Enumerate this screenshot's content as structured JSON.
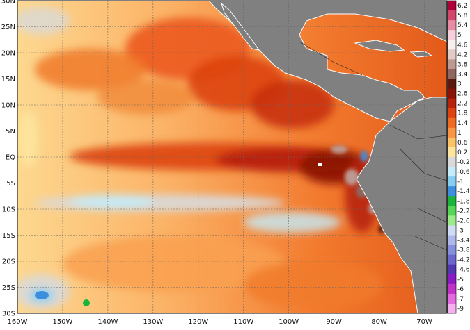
{
  "map": {
    "lat_labels": [
      "30N",
      "25N",
      "20N",
      "15N",
      "10N",
      "5N",
      "EQ",
      "5S",
      "10S",
      "15S",
      "20S",
      "25S",
      "30S"
    ],
    "lon_labels": [
      "160W",
      "150W",
      "140W",
      "130W",
      "120W",
      "110W",
      "100W",
      "90W",
      "80W",
      "70W"
    ],
    "extent": {
      "lon": [
        -160,
        -65
      ],
      "lat": [
        -30,
        30
      ]
    },
    "grid": true,
    "colorbar": {
      "placement": "right",
      "labels": [
        "6.2",
        "5.8",
        "5.4",
        "5",
        "4.6",
        "4.2",
        "3.8",
        "3.4",
        "3",
        "2.6",
        "2.2",
        "1.8",
        "1.4",
        "1",
        "0.6",
        "0.2",
        "-0.2",
        "-0.6",
        "-1",
        "-1.4",
        "-1.8",
        "-2.2",
        "-2.6",
        "-3",
        "-3.4",
        "-3.8",
        "-4.2",
        "-4.6",
        "-5",
        "-6",
        "-7",
        "-9"
      ],
      "colors": [
        "#b0003a",
        "#d2486a",
        "#e88ca4",
        "#f6cfdb",
        "#f7efee",
        "#e1cbc5",
        "#bc9a92",
        "#8f6760",
        "#5a1a10",
        "#8a1206",
        "#b8220c",
        "#dd420f",
        "#f06a20",
        "#f99441",
        "#fcc266",
        "#fde59d",
        "#d9d9d9",
        "#c4ecfb",
        "#86cff2",
        "#3c8fdd",
        "#19b53b",
        "#56d656",
        "#9ceb8a",
        "#d0dcf5",
        "#aeb8ea",
        "#8790de",
        "#6b67cc",
        "#5236b2",
        "#8a1ac4",
        "#c232c8",
        "#e36ae0",
        "#f5b0f0"
      ]
    },
    "legend_colors": {
      "land": "#808080",
      "neutral": "#d9d9d9",
      "warm_peak": "#5a1a10",
      "cool": "#c4ecfb"
    }
  }
}
